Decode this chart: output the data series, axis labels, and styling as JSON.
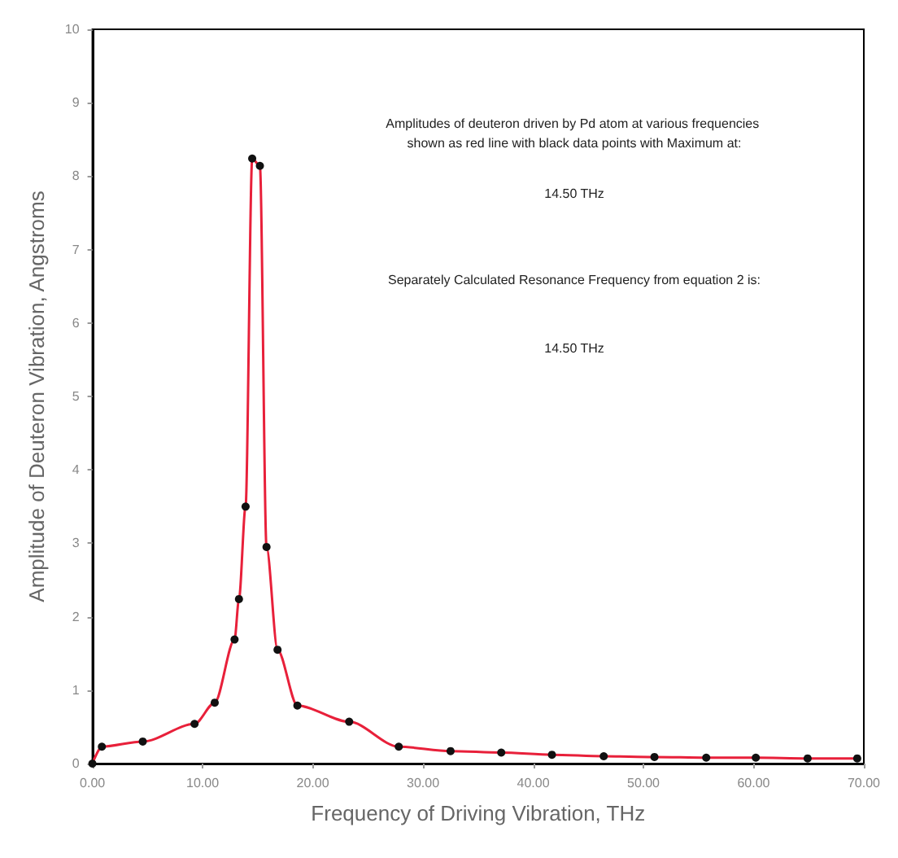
{
  "chart_data": {
    "type": "line",
    "xlabel": "Frequency of Driving Vibration, THz",
    "ylabel": "Amplitude of Deuteron Vibration, Angstroms",
    "annotations": [
      "Amplitudes of deuteron driven by Pd atom at various frequencies shown as red line with black data points with Maximum at:",
      "14.50 THz",
      "Separately Calculated Resonance Frequency from equation 2 is:",
      "14.50 THz"
    ],
    "x": [
      0,
      0.86,
      4.57,
      9.27,
      11.1,
      12.9,
      13.3,
      13.9,
      14.5,
      15.2,
      15.8,
      16.8,
      18.6,
      23.3,
      27.8,
      32.5,
      37.1,
      41.7,
      46.4,
      51.0,
      55.7,
      60.2,
      64.9,
      69.4
    ],
    "series": [
      {
        "color": "#e8203a",
        "values": [
          0,
          0.23,
          0.3,
          0.54,
          0.83,
          1.69,
          2.24,
          3.5,
          8.24,
          8.14,
          2.95,
          1.55,
          0.79,
          0.57,
          0.23,
          0.17,
          0.15,
          0.12,
          0.1,
          0.09,
          0.08,
          0.08,
          0.07,
          0.07
        ]
      }
    ],
    "xlim": [
      0,
      70
    ],
    "xticks": [
      {
        "value": 0,
        "label": "0.00"
      },
      {
        "value": 10,
        "label": "10.00"
      },
      {
        "value": 20,
        "label": "20.00"
      },
      {
        "value": 30,
        "label": "30.00"
      },
      {
        "value": 40,
        "label": "40.00"
      },
      {
        "value": 50,
        "label": "50.00"
      },
      {
        "value": 60,
        "label": "60.00"
      },
      {
        "value": 70,
        "label": "70.00"
      }
    ],
    "ylim": [
      0,
      10
    ],
    "yticks": [
      0,
      1,
      2,
      3,
      4,
      5,
      6,
      7,
      8,
      9,
      10
    ],
    "grid": false,
    "marker": "circle",
    "line_style": "solid"
  }
}
